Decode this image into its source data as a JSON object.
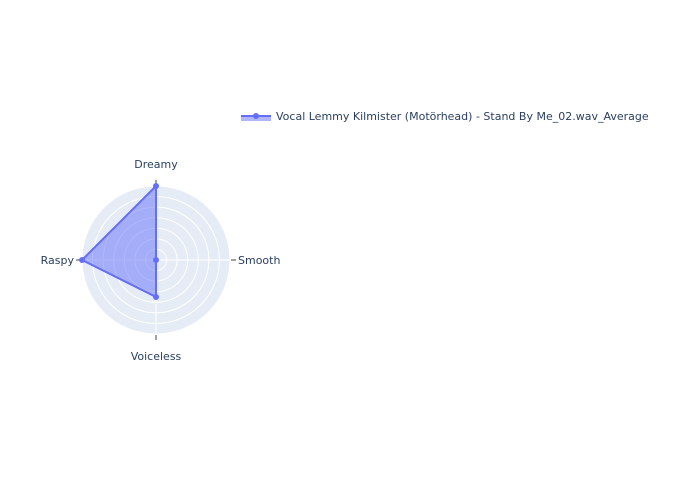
{
  "chart_data": {
    "type": "radar",
    "axes": [
      "Dreamy",
      "Smooth",
      "Voiceless",
      "Raspy"
    ],
    "series": [
      {
        "name": "Vocal Lemmy Kilmister (Motörhead) - Stand By Me_02.wav_Average",
        "values": [
          1.0,
          0.0,
          0.5,
          1.0
        ]
      }
    ],
    "radial_range": [
      0,
      1
    ],
    "legend": "top-right",
    "grid": true,
    "colors": {
      "line": "#636efa",
      "fill": "#636efa",
      "polar_bg": "#e5ecf6",
      "grid": "#ffffff",
      "text": "#2a3f5f"
    }
  }
}
